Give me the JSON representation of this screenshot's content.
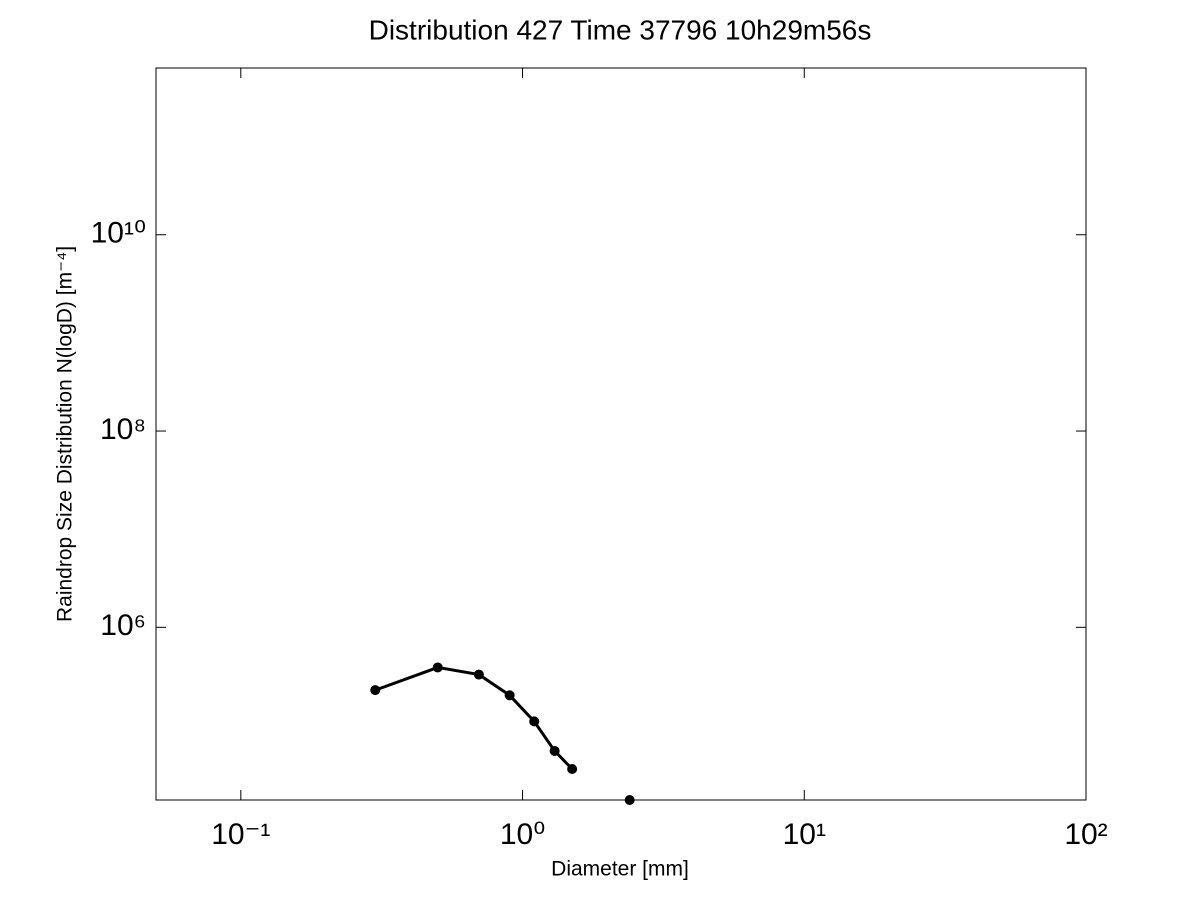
{
  "chart_data": {
    "type": "line",
    "title": "Distribution 427 Time 37796 10h29m56s",
    "xlabel": "Diameter [mm]",
    "ylabel": "Raindrop Size Distribution N(logD) [m⁻⁴]",
    "xscale": "log",
    "yscale": "log",
    "xlim": [
      0.05,
      100
    ],
    "ylim": [
      17400,
      500000000000
    ],
    "xticks": [
      {
        "value": 0.1,
        "label": "10⁻¹"
      },
      {
        "value": 1,
        "label": "10⁰"
      },
      {
        "value": 10,
        "label": "10¹"
      },
      {
        "value": 100,
        "label": "10²"
      }
    ],
    "yticks": [
      {
        "value": 1000000,
        "label": "10⁶"
      },
      {
        "value": 100000000,
        "label": "10⁸"
      },
      {
        "value": 10000000000,
        "label": "10¹⁰"
      }
    ],
    "series": [
      {
        "color": "#000000",
        "x": [
          0.3,
          0.5,
          0.7,
          0.9,
          1.1,
          1.3,
          1.5
        ],
        "values": [
          229000,
          390000,
          330000,
          203000,
          110000,
          55000,
          36000
        ]
      },
      {
        "color": "#000000",
        "x": [
          2.4
        ],
        "values": [
          17400
        ]
      }
    ]
  }
}
